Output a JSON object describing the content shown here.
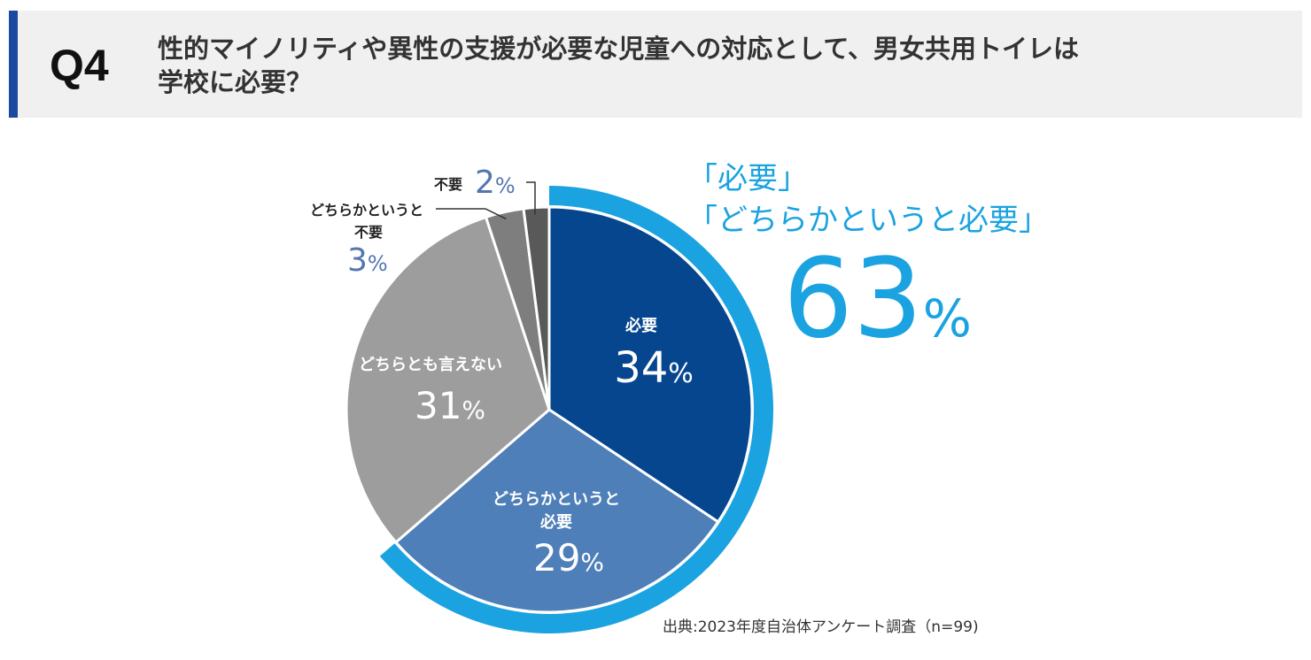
{
  "header": {
    "label": "Q4",
    "question": "性的マイノリティや異性の支援が必要な児童への対応として、男女共用トイレは\n学校に必要？"
  },
  "chart_data": {
    "type": "pie",
    "title": "性的マイノリティや異性の支援が必要な児童への対応として、男女共用トイレは学校に必要？",
    "slices": [
      {
        "name": "必要",
        "value": 34,
        "color": "#06468f"
      },
      {
        "name": "どちらかというと必要",
        "value": 29,
        "color": "#4f7fb8"
      },
      {
        "name": "どちらとも言えない",
        "value": 31,
        "color": "#9d9d9d"
      },
      {
        "name": "どちらかというと不要",
        "value": 3,
        "color": "#7e7e7e"
      },
      {
        "name": "不要",
        "value": 2,
        "color": "#595959"
      }
    ],
    "highlight": {
      "label_line1": "「必要」",
      "label_line2": "「どちらかというと必要」",
      "value": 63,
      "color": "#1aa3e0"
    },
    "unit": "%"
  },
  "labels": {
    "need_line1": "必要",
    "need_value": "34",
    "rather_need_line1": "どちらかというと",
    "rather_need_line2": "必要",
    "rather_need_value": "29",
    "neutral_line1": "どちらとも言えない",
    "neutral_value": "31",
    "rather_no_line1": "どちらかというと",
    "rather_no_line2": "不要",
    "rather_no_value": "3",
    "no_line1": "不要",
    "no_value": "2",
    "pct": "%"
  },
  "source": "出典:2023年度自治体アンケート調査（n=99)"
}
